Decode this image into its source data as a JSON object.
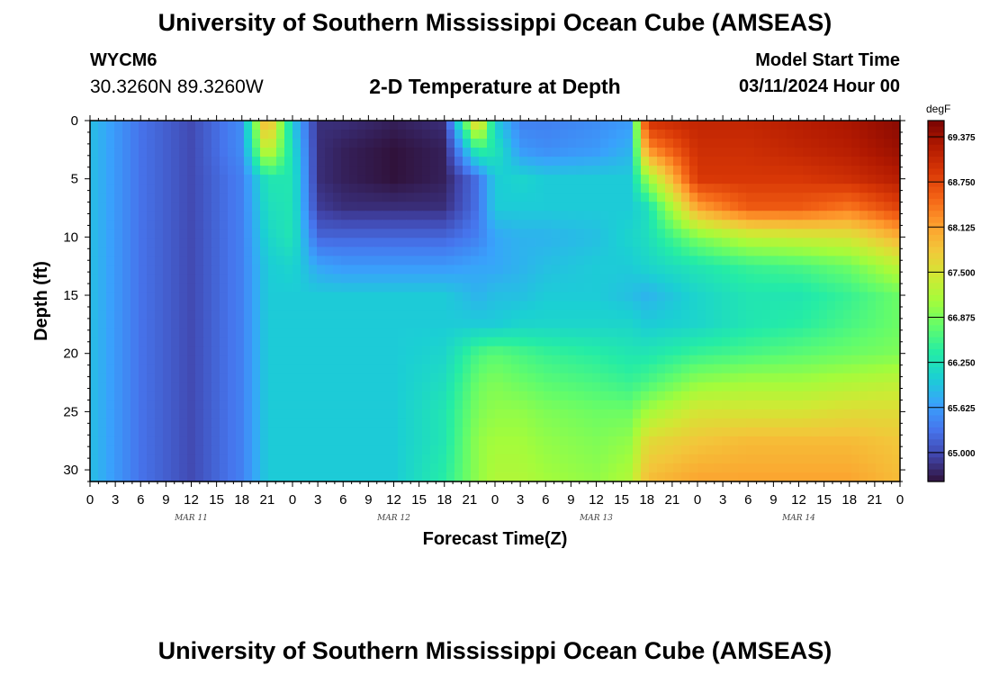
{
  "header": {
    "title": "University of Southern Mississippi Ocean Cube (AMSEAS)",
    "station": "WYCM6",
    "coords": "30.3260N  89.3260W",
    "subtitle": "2-D Temperature at Depth",
    "model_start_label": "Model Start Time",
    "model_start_value": "03/11/2024 Hour 00",
    "footer_title": "University of Southern Mississippi Ocean Cube (AMSEAS)"
  },
  "chart_data": {
    "type": "heatmap",
    "title": "2-D Temperature at Depth",
    "xlabel": "Forecast Time(Z)",
    "ylabel": "Depth (ft)",
    "x_range_hours": [
      0,
      96
    ],
    "y_range_ft": [
      0,
      31
    ],
    "x_tick_labels": [
      "0",
      "3",
      "6",
      "9",
      "12",
      "15",
      "18",
      "21",
      "0",
      "3",
      "6",
      "9",
      "12",
      "15",
      "18",
      "21",
      "0",
      "3",
      "6",
      "9",
      "12",
      "15",
      "18",
      "21",
      "0",
      "3",
      "6",
      "9",
      "12",
      "15",
      "18",
      "21",
      "0"
    ],
    "y_ticks": [
      0,
      5,
      10,
      15,
      20,
      25,
      30
    ],
    "y_tick_labels": [
      "0",
      "5",
      "10",
      "15",
      "20",
      "25",
      "30"
    ],
    "day_labels": [
      "MAR 11",
      "MAR 12",
      "MAR 13",
      "MAR 14"
    ],
    "colorbar": {
      "unit": "degF",
      "min": 64.6,
      "max": 69.6,
      "ticks": [
        65.0,
        65.625,
        66.25,
        66.875,
        67.5,
        68.125,
        68.75,
        69.375
      ],
      "tick_labels": [
        "65.000",
        "65.625",
        "66.250",
        "66.875",
        "67.500",
        "68.125",
        "68.750",
        "69.375"
      ],
      "colors": [
        "#30123b",
        "#4145ab",
        "#4675ed",
        "#39a2fc",
        "#1bcfd4",
        "#24eca6",
        "#61fc6c",
        "#a4fc3b",
        "#d1e834",
        "#f3c63a",
        "#fe9b2d",
        "#f36315",
        "#d93806",
        "#b11901",
        "#7a0402"
      ]
    },
    "depth_grid_ft": [
      0,
      2.5,
      5,
      7.5,
      10,
      12.5,
      15,
      17.5,
      20,
      22.5,
      25,
      27.5,
      31
    ],
    "time_grid_hours": [
      0,
      6,
      12,
      18,
      21,
      24,
      27,
      30,
      36,
      42,
      46,
      48,
      51,
      54,
      60,
      64,
      66,
      72,
      78,
      84,
      90,
      96
    ],
    "temperature_degF": [
      [
        65.9,
        65.3,
        65.0,
        65.5,
        68.2,
        66.0,
        64.8,
        64.8,
        64.7,
        64.8,
        68.0,
        66.0,
        65.4,
        65.4,
        65.5,
        65.6,
        69.0,
        69.1,
        69.1,
        69.2,
        69.3,
        69.5
      ],
      [
        65.9,
        65.3,
        65.0,
        65.5,
        67.5,
        66.2,
        64.8,
        64.7,
        64.6,
        64.7,
        66.5,
        66.3,
        65.6,
        65.5,
        65.6,
        65.8,
        68.2,
        69.0,
        69.0,
        69.1,
        69.2,
        69.4
      ],
      [
        65.9,
        65.3,
        65.0,
        65.4,
        66.3,
        66.3,
        64.8,
        64.7,
        64.6,
        64.7,
        65.3,
        66.0,
        66.1,
        66.0,
        66.0,
        66.0,
        67.0,
        68.9,
        68.9,
        68.9,
        69.0,
        69.2
      ],
      [
        65.9,
        65.3,
        65.0,
        65.4,
        66.2,
        66.3,
        64.9,
        64.8,
        64.8,
        64.8,
        65.3,
        66.0,
        66.0,
        66.0,
        66.0,
        66.0,
        66.2,
        68.1,
        68.6,
        68.6,
        68.4,
        68.8
      ],
      [
        65.9,
        65.3,
        65.0,
        65.4,
        66.1,
        66.3,
        65.2,
        65.2,
        65.2,
        65.2,
        65.4,
        65.7,
        65.8,
        65.8,
        65.9,
        66.1,
        66.2,
        66.9,
        67.3,
        67.4,
        67.5,
        68.0
      ],
      [
        65.9,
        65.3,
        65.0,
        65.4,
        66.0,
        66.1,
        65.7,
        65.6,
        65.6,
        65.6,
        65.7,
        65.7,
        65.8,
        65.9,
        66.0,
        66.0,
        66.1,
        66.3,
        66.5,
        66.6,
        66.8,
        67.3
      ],
      [
        65.9,
        65.3,
        65.0,
        65.4,
        66.0,
        66.0,
        66.0,
        66.0,
        66.0,
        66.0,
        65.8,
        65.9,
        65.9,
        66.0,
        66.0,
        65.9,
        65.8,
        66.1,
        66.3,
        66.3,
        66.5,
        66.8
      ],
      [
        65.9,
        65.3,
        65.0,
        65.4,
        66.0,
        66.0,
        66.0,
        66.0,
        66.0,
        66.0,
        66.0,
        66.0,
        66.1,
        66.1,
        66.1,
        66.1,
        66.0,
        66.1,
        66.3,
        66.4,
        66.6,
        66.8
      ],
      [
        65.9,
        65.3,
        65.0,
        65.4,
        66.0,
        66.0,
        66.0,
        66.0,
        66.0,
        66.1,
        66.6,
        66.7,
        66.6,
        66.5,
        66.4,
        66.3,
        66.3,
        66.5,
        66.6,
        66.7,
        66.8,
        66.9
      ],
      [
        65.9,
        65.3,
        65.0,
        65.4,
        66.0,
        66.0,
        66.0,
        66.0,
        66.0,
        66.2,
        66.8,
        66.9,
        66.8,
        66.7,
        66.6,
        66.5,
        66.6,
        67.0,
        67.1,
        67.1,
        67.2,
        67.3
      ],
      [
        65.9,
        65.3,
        65.0,
        65.4,
        66.0,
        66.0,
        66.0,
        66.0,
        66.0,
        66.3,
        66.9,
        67.0,
        67.0,
        66.9,
        66.8,
        66.8,
        67.1,
        67.5,
        67.5,
        67.5,
        67.6,
        67.6
      ],
      [
        65.9,
        65.3,
        65.0,
        65.4,
        66.0,
        66.0,
        66.0,
        66.0,
        66.0,
        66.3,
        67.0,
        67.1,
        67.1,
        67.0,
        66.9,
        67.0,
        67.6,
        67.8,
        67.9,
        67.9,
        67.9,
        67.8
      ],
      [
        65.9,
        65.3,
        65.0,
        65.4,
        66.0,
        66.0,
        66.0,
        66.0,
        66.0,
        66.4,
        67.0,
        67.2,
        67.2,
        67.1,
        67.0,
        67.2,
        67.9,
        68.1,
        68.1,
        68.1,
        68.1,
        67.9
      ]
    ]
  }
}
